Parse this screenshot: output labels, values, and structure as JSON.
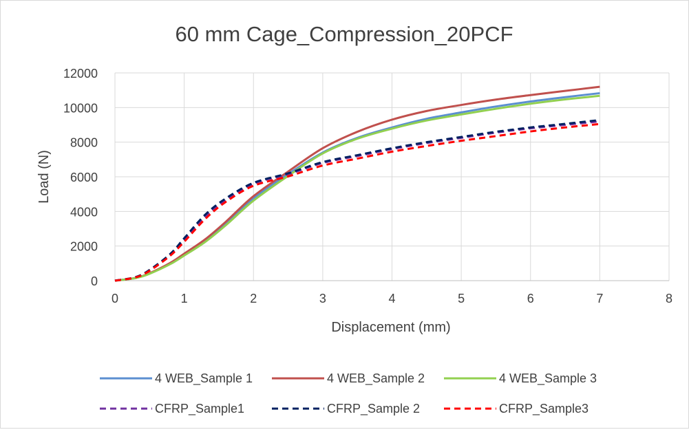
{
  "chart_data": {
    "type": "line",
    "title": "60 mm Cage_Compression_20PCF",
    "xlabel": "Displacement (mm)",
    "ylabel": "Load (N)",
    "xlim": [
      0,
      8
    ],
    "ylim": [
      0,
      12000
    ],
    "x_ticks": [
      "0",
      "1",
      "2",
      "3",
      "4",
      "5",
      "6",
      "7",
      "8"
    ],
    "y_ticks": [
      "0",
      "2000",
      "4000",
      "6000",
      "8000",
      "10000",
      "12000"
    ],
    "grid": true,
    "legend_position": "bottom",
    "series": [
      {
        "name": "4 WEB_Sample 1",
        "color": "#5b8fd0",
        "dash": false,
        "points": [
          [
            0,
            0
          ],
          [
            0.3,
            160
          ],
          [
            0.5,
            420
          ],
          [
            0.8,
            1000
          ],
          [
            1.0,
            1500
          ],
          [
            1.3,
            2300
          ],
          [
            1.6,
            3300
          ],
          [
            2.0,
            4750
          ],
          [
            2.5,
            6150
          ],
          [
            3.0,
            7400
          ],
          [
            3.5,
            8250
          ],
          [
            4.0,
            8850
          ],
          [
            4.5,
            9350
          ],
          [
            5.0,
            9720
          ],
          [
            5.5,
            10060
          ],
          [
            6.0,
            10350
          ],
          [
            6.5,
            10600
          ],
          [
            7.0,
            10830
          ]
        ]
      },
      {
        "name": "4 WEB_Sample 2",
        "color": "#c0504d",
        "dash": false,
        "points": [
          [
            0,
            0
          ],
          [
            0.3,
            160
          ],
          [
            0.5,
            430
          ],
          [
            0.8,
            1030
          ],
          [
            1.0,
            1560
          ],
          [
            1.3,
            2380
          ],
          [
            1.6,
            3400
          ],
          [
            2.0,
            4880
          ],
          [
            2.5,
            6300
          ],
          [
            3.0,
            7650
          ],
          [
            3.5,
            8600
          ],
          [
            4.0,
            9300
          ],
          [
            4.5,
            9800
          ],
          [
            5.0,
            10150
          ],
          [
            5.5,
            10460
          ],
          [
            6.0,
            10720
          ],
          [
            6.5,
            10960
          ],
          [
            7.0,
            11200
          ]
        ]
      },
      {
        "name": "4 WEB_Sample 3",
        "color": "#92d050",
        "dash": false,
        "points": [
          [
            0,
            0
          ],
          [
            0.3,
            150
          ],
          [
            0.5,
            400
          ],
          [
            0.8,
            960
          ],
          [
            1.0,
            1450
          ],
          [
            1.3,
            2230
          ],
          [
            1.6,
            3200
          ],
          [
            2.0,
            4620
          ],
          [
            2.5,
            6050
          ],
          [
            3.0,
            7350
          ],
          [
            3.5,
            8200
          ],
          [
            4.0,
            8780
          ],
          [
            4.5,
            9250
          ],
          [
            5.0,
            9600
          ],
          [
            5.5,
            9930
          ],
          [
            6.0,
            10220
          ],
          [
            6.5,
            10470
          ],
          [
            7.0,
            10680
          ]
        ]
      },
      {
        "name": "CFRP_Sample1",
        "color": "#7030a0",
        "dash": true,
        "points": [
          [
            0,
            0
          ],
          [
            0.3,
            200
          ],
          [
            0.5,
            600
          ],
          [
            0.8,
            1500
          ],
          [
            1.0,
            2350
          ],
          [
            1.3,
            3700
          ],
          [
            1.6,
            4650
          ],
          [
            2.0,
            5600
          ],
          [
            2.5,
            6150
          ],
          [
            3.0,
            6800
          ],
          [
            3.5,
            7200
          ],
          [
            4.0,
            7600
          ],
          [
            4.5,
            7950
          ],
          [
            5.0,
            8250
          ],
          [
            5.5,
            8550
          ],
          [
            6.0,
            8800
          ],
          [
            6.5,
            9000
          ],
          [
            7.0,
            9200
          ]
        ]
      },
      {
        "name": "CFRP_Sample 2",
        "color": "#002060",
        "dash": true,
        "points": [
          [
            0,
            0
          ],
          [
            0.3,
            210
          ],
          [
            0.5,
            620
          ],
          [
            0.8,
            1550
          ],
          [
            1.0,
            2450
          ],
          [
            1.3,
            3800
          ],
          [
            1.6,
            4750
          ],
          [
            2.0,
            5650
          ],
          [
            2.5,
            6200
          ],
          [
            3.0,
            6850
          ],
          [
            3.5,
            7250
          ],
          [
            4.0,
            7650
          ],
          [
            4.5,
            8000
          ],
          [
            5.0,
            8300
          ],
          [
            5.5,
            8600
          ],
          [
            6.0,
            8850
          ],
          [
            6.5,
            9060
          ],
          [
            7.0,
            9280
          ]
        ]
      },
      {
        "name": "CFRP_Sample3",
        "color": "#ff0000",
        "dash": true,
        "points": [
          [
            0,
            0
          ],
          [
            0.3,
            190
          ],
          [
            0.5,
            570
          ],
          [
            0.8,
            1450
          ],
          [
            1.0,
            2250
          ],
          [
            1.3,
            3550
          ],
          [
            1.6,
            4550
          ],
          [
            2.0,
            5480
          ],
          [
            2.5,
            6020
          ],
          [
            3.0,
            6650
          ],
          [
            3.5,
            7050
          ],
          [
            4.0,
            7450
          ],
          [
            4.5,
            7780
          ],
          [
            5.0,
            8080
          ],
          [
            5.5,
            8350
          ],
          [
            6.0,
            8620
          ],
          [
            6.5,
            8850
          ],
          [
            7.0,
            9050
          ]
        ]
      }
    ]
  }
}
